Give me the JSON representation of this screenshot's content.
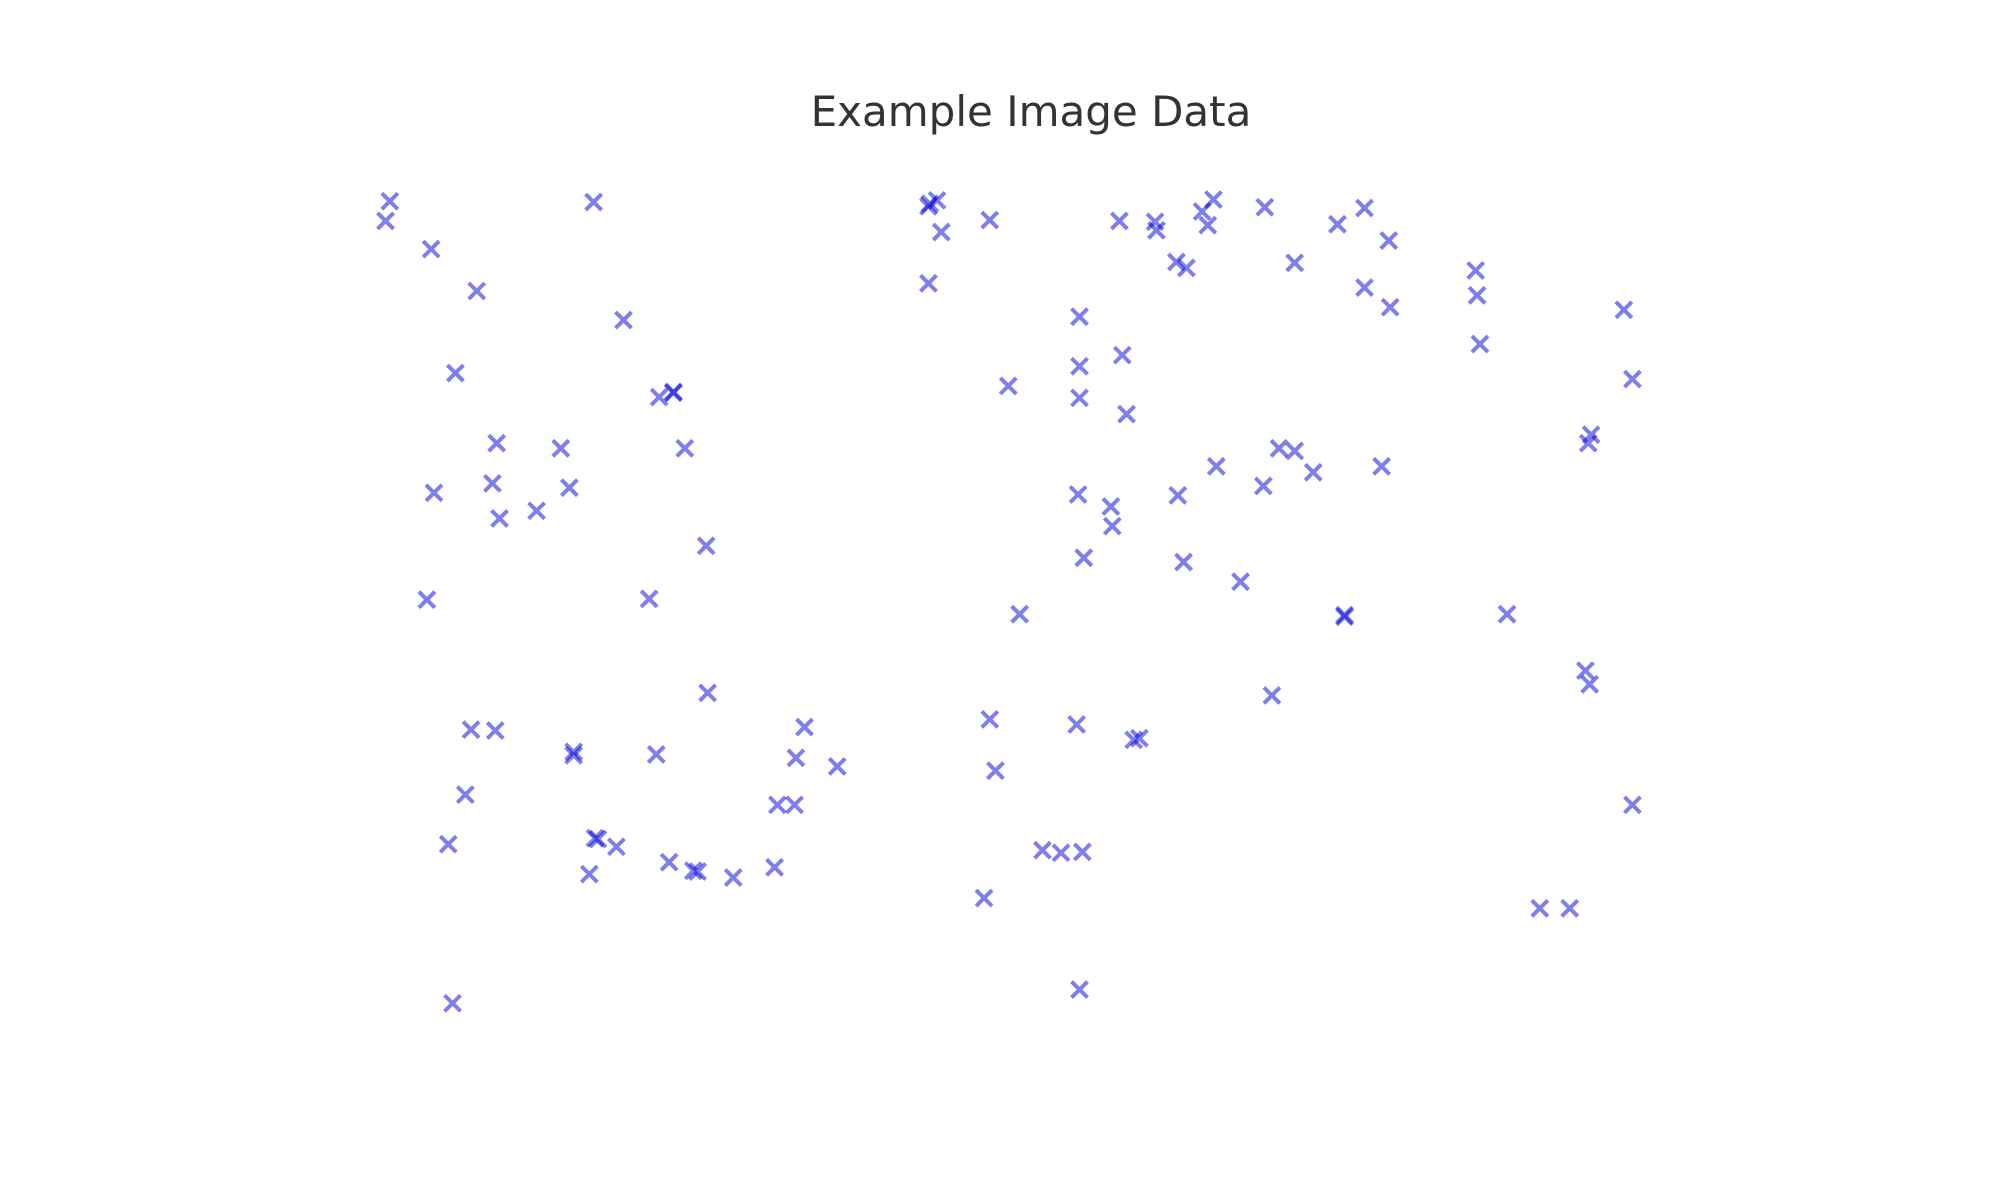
{
  "chart_data": {
    "type": "scatter",
    "title": "Example Image Data",
    "xlabel": "",
    "ylabel": "",
    "xlim": [
      0,
      1
    ],
    "ylim": [
      0,
      1
    ],
    "grid": false,
    "axes_visible": false,
    "marker": "x",
    "color": "#0000dd",
    "opacity": 0.5,
    "series": [
      {
        "x": [
          0.049,
          0.046,
          0.078,
          0.095,
          0.11,
          0.08,
          0.124,
          0.192,
          0.213,
          0.248,
          0.248,
          0.238,
          0.256,
          0.169,
          0.121,
          0.175,
          0.075,
          0.126,
          0.152,
          0.271,
          0.231,
          0.272,
          0.106,
          0.123,
          0.178,
          0.178,
          0.236,
          0.102,
          0.193,
          0.189,
          0.09,
          0.093,
          0.195,
          0.265,
          0.245,
          0.208,
          0.262,
          0.29,
          0.319,
          0.34,
          0.321,
          0.333,
          0.334,
          0.363,
          0.433,
          0.427,
          0.428,
          0.436,
          0.427,
          0.47,
          0.483,
          0.491,
          0.47,
          0.474,
          0.531,
          0.507,
          0.466,
          0.52,
          0.535,
          0.533,
          0.561,
          0.563,
          0.533,
          0.533,
          0.533,
          0.566,
          0.623,
          0.587,
          0.586,
          0.601,
          0.619,
          0.602,
          0.571,
          0.532,
          0.536,
          0.555,
          0.556,
          0.575,
          0.627,
          0.608,
          0.629,
          0.606,
          0.662,
          0.673,
          0.663,
          0.684,
          0.646,
          0.697,
          0.684,
          0.714,
          0.733,
          0.75,
          0.733,
          0.751,
          0.745,
          0.719,
          0.719,
          0.668,
          0.812,
          0.814,
          0.811,
          0.89,
          0.892,
          0.915,
          0.921,
          0.833,
          0.891,
          0.888,
          0.921,
          0.856,
          0.877
        ],
        "y": [
          0.981,
          0.958,
          0.925,
          0.78,
          0.876,
          0.64,
          0.698,
          0.98,
          0.842,
          0.758,
          0.757,
          0.752,
          0.692,
          0.692,
          0.651,
          0.646,
          0.515,
          0.61,
          0.619,
          0.578,
          0.516,
          0.406,
          0.363,
          0.362,
          0.333,
          0.337,
          0.334,
          0.287,
          0.236,
          0.194,
          0.229,
          0.043,
          0.235,
          0.197,
          0.208,
          0.226,
          0.198,
          0.19,
          0.202,
          0.366,
          0.275,
          0.275,
          0.33,
          0.32,
          0.982,
          0.975,
          0.978,
          0.945,
          0.885,
          0.959,
          0.765,
          0.498,
          0.375,
          0.315,
          0.369,
          0.222,
          0.166,
          0.219,
          0.22,
          0.059,
          0.958,
          0.801,
          0.846,
          0.788,
          0.751,
          0.732,
          0.953,
          0.947,
          0.957,
          0.91,
          0.969,
          0.637,
          0.351,
          0.638,
          0.564,
          0.624,
          0.601,
          0.353,
          0.983,
          0.903,
          0.671,
          0.559,
          0.648,
          0.692,
          0.974,
          0.689,
          0.536,
          0.664,
          0.909,
          0.954,
          0.973,
          0.935,
          0.88,
          0.857,
          0.671,
          0.497,
          0.495,
          0.403,
          0.871,
          0.814,
          0.9,
          0.698,
          0.708,
          0.854,
          0.773,
          0.498,
          0.416,
          0.432,
          0.275,
          0.154,
          0.154
        ]
      }
    ]
  }
}
